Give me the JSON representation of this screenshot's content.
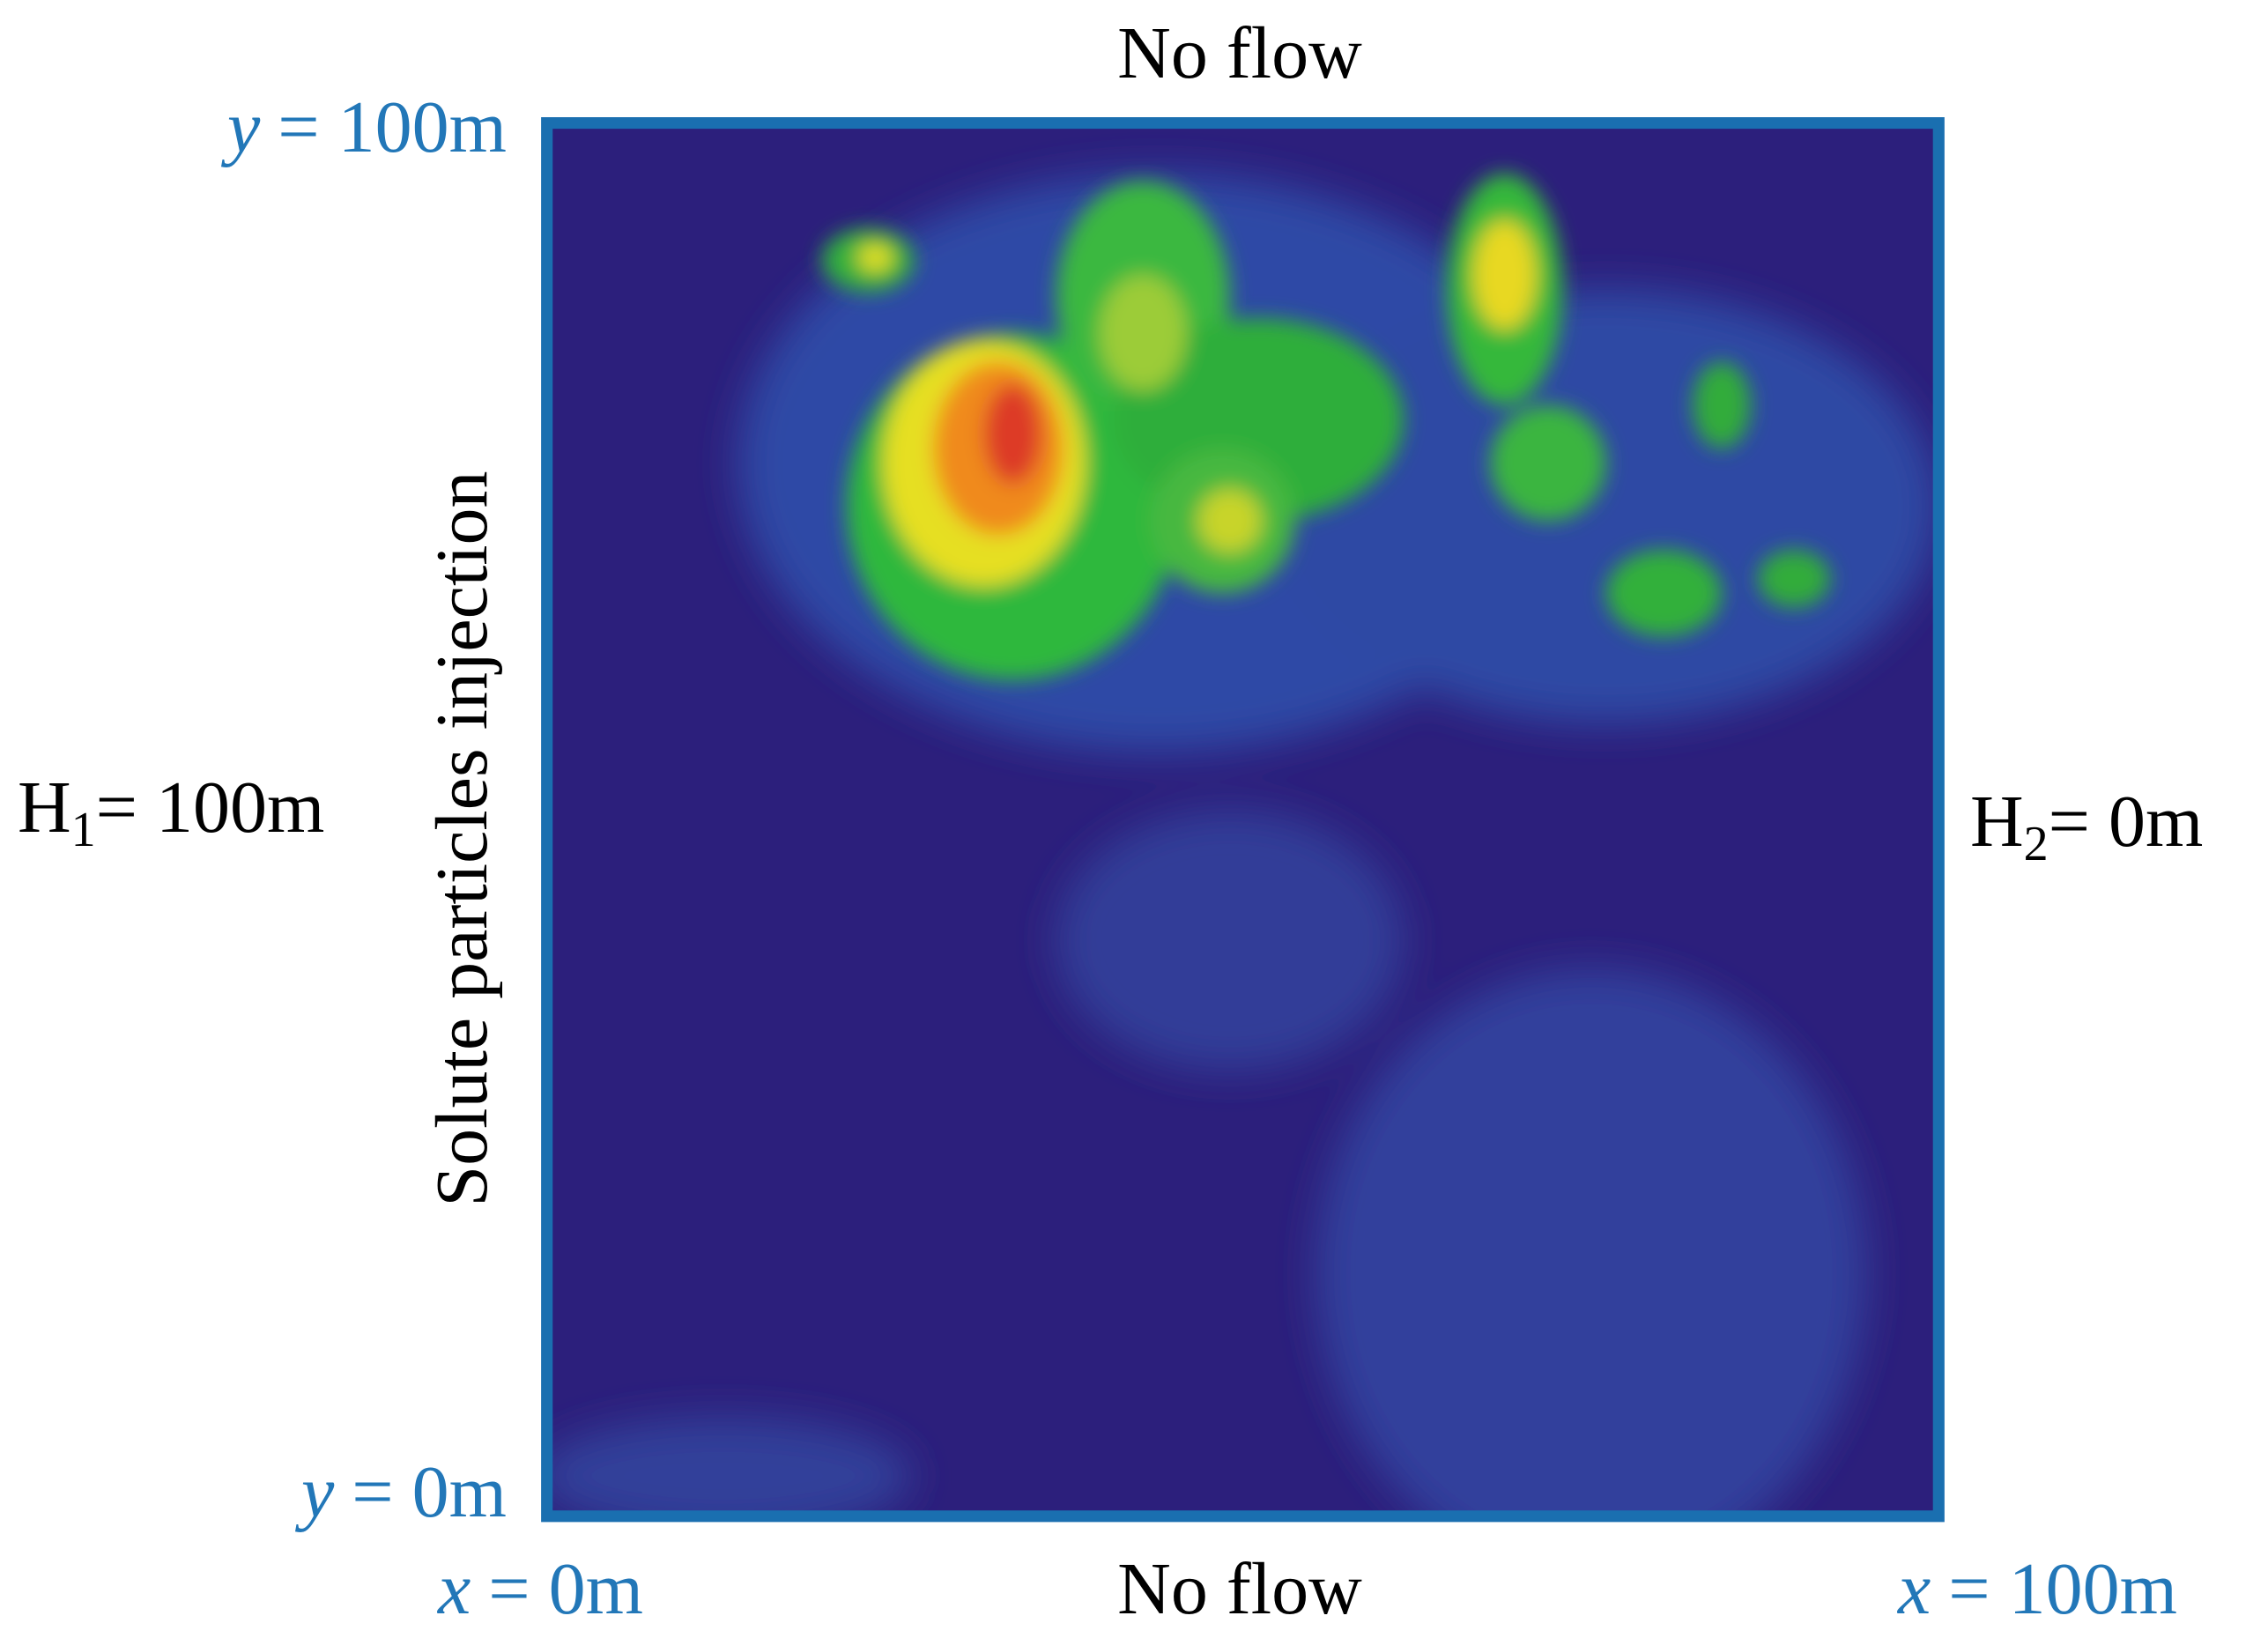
{
  "labels": {
    "top": "No flow",
    "bottom": "No flow",
    "left_rotated": "Solute particles injection",
    "y_top": {
      "var": "y",
      "rest": "= 100m"
    },
    "y_bottom": {
      "var": "y",
      "rest": "= 0m"
    },
    "x_left": {
      "var": "x",
      "rest": "= 0m"
    },
    "x_right": {
      "var": "x",
      "rest": "= 100m"
    },
    "h_left": {
      "base": "H",
      "sub": "1",
      "rest": "= 100m"
    },
    "h_right": {
      "base": "H",
      "sub": "2",
      "rest": "= 0m"
    }
  }
}
